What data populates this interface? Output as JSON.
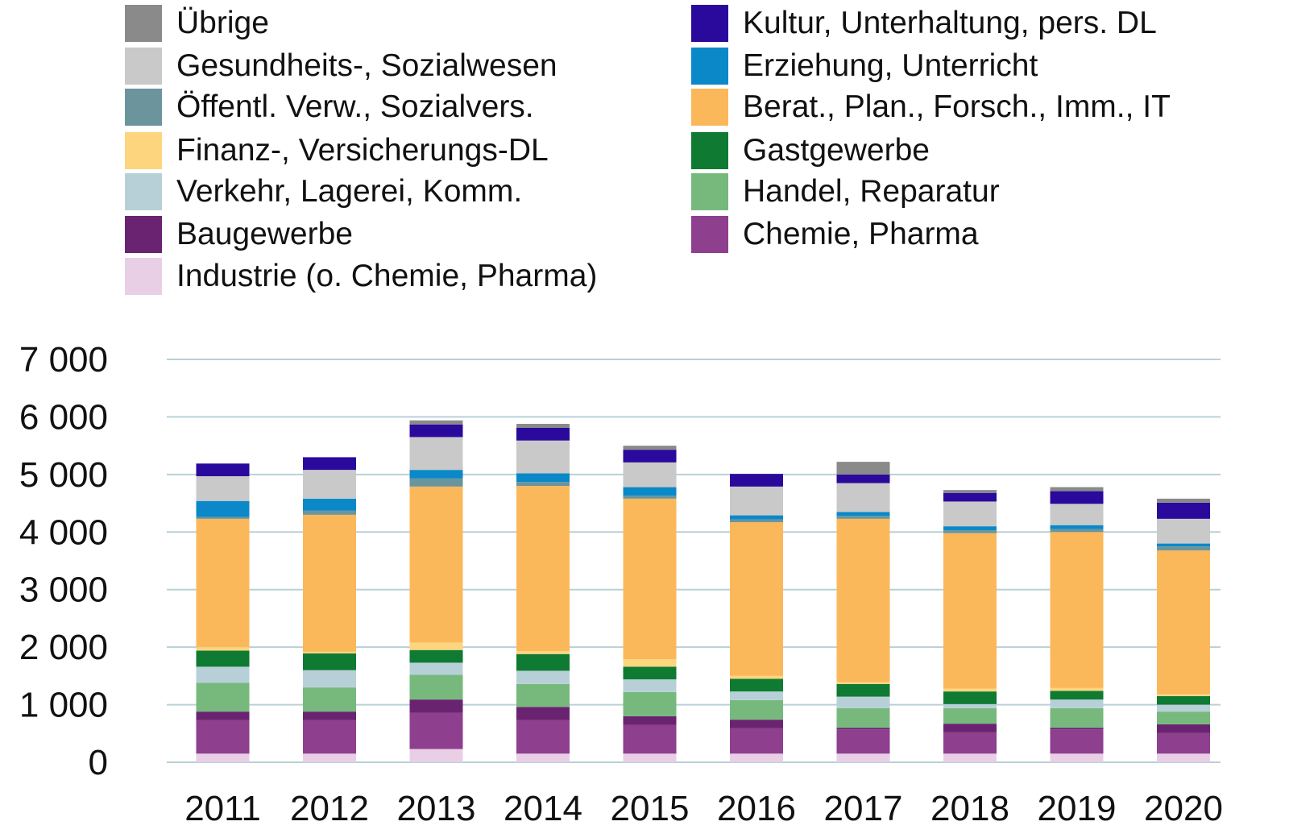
{
  "chart_data": {
    "type": "bar",
    "stacked": true,
    "categories": [
      "2011",
      "2012",
      "2013",
      "2014",
      "2015",
      "2016",
      "2017",
      "2018",
      "2019",
      "2020"
    ],
    "ylim": [
      0,
      7000
    ],
    "yticks": [
      {
        "value": 0,
        "label": "0"
      },
      {
        "value": 1000,
        "label": "1 000"
      },
      {
        "value": 2000,
        "label": "2 000"
      },
      {
        "value": 3000,
        "label": "3 000"
      },
      {
        "value": 4000,
        "label": "4 000"
      },
      {
        "value": 5000,
        "label": "5 000"
      },
      {
        "value": 6000,
        "label": "6 000"
      },
      {
        "value": 7000,
        "label": "7 000"
      }
    ],
    "grid": true,
    "legend_position": "top",
    "series": [
      {
        "name": "Industrie (o. Chemie, Pharma)",
        "color": "#e8cfe6",
        "values": [
          150,
          150,
          230,
          150,
          150,
          150,
          150,
          150,
          150,
          150
        ]
      },
      {
        "name": "Chemie, Pharma",
        "color": "#8e3f8e",
        "values": [
          580,
          580,
          630,
          580,
          500,
          440,
          420,
          370,
          420,
          360
        ]
      },
      {
        "name": "Baugewerbe",
        "color": "#6a2371",
        "values": [
          150,
          150,
          230,
          230,
          150,
          150,
          30,
          150,
          30,
          150
        ]
      },
      {
        "name": "Handel, Reparatur",
        "color": "#77b97d",
        "values": [
          500,
          420,
          430,
          400,
          420,
          340,
          340,
          270,
          340,
          220
        ]
      },
      {
        "name": "Verkehr, Lagerei, Komm.",
        "color": "#b7d0d8",
        "values": [
          280,
          300,
          210,
          230,
          220,
          150,
          200,
          70,
          150,
          120
        ]
      },
      {
        "name": "Gastgewerbe",
        "color": "#0e7a32",
        "values": [
          280,
          290,
          220,
          290,
          220,
          220,
          220,
          220,
          150,
          150
        ]
      },
      {
        "name": "Finanz-, Versicherungs-DL",
        "color": "#fdd57e",
        "values": [
          60,
          30,
          130,
          50,
          130,
          50,
          30,
          50,
          50,
          30
        ]
      },
      {
        "name": "Berat., Plan., Forsch., Imm., IT",
        "color": "#fbb85a",
        "values": [
          2230,
          2380,
          2710,
          2870,
          2790,
          2670,
          2840,
          2700,
          2710,
          2500
        ]
      },
      {
        "name": "Öffentl. Verw., Sozialvers.",
        "color": "#6b949c",
        "values": [
          30,
          70,
          140,
          70,
          50,
          50,
          50,
          50,
          50,
          70
        ]
      },
      {
        "name": "Erziehung, Unterricht",
        "color": "#0b88c8",
        "values": [
          280,
          210,
          150,
          150,
          150,
          70,
          70,
          70,
          70,
          50
        ]
      },
      {
        "name": "Gesundheits-, Sozialwesen",
        "color": "#c9c9c9",
        "values": [
          430,
          500,
          570,
          570,
          430,
          500,
          500,
          430,
          370,
          430
        ]
      },
      {
        "name": "Kultur, Unterhaltung, pers. DL",
        "color": "#2a0a9c",
        "values": [
          220,
          220,
          220,
          220,
          220,
          220,
          150,
          150,
          220,
          280
        ]
      },
      {
        "name": "Übrige",
        "color": "#8a8a8a",
        "values": [
          0,
          0,
          70,
          70,
          70,
          0,
          220,
          50,
          70,
          70
        ]
      }
    ],
    "legend_layout": [
      {
        "series": 12,
        "col": 0,
        "row": 0
      },
      {
        "series": 10,
        "col": 0,
        "row": 1
      },
      {
        "series": 8,
        "col": 0,
        "row": 2
      },
      {
        "series": 6,
        "col": 0,
        "row": 3
      },
      {
        "series": 4,
        "col": 0,
        "row": 4
      },
      {
        "series": 2,
        "col": 0,
        "row": 5
      },
      {
        "series": 0,
        "col": 0,
        "row": 6
      },
      {
        "series": 11,
        "col": 1,
        "row": 0
      },
      {
        "series": 9,
        "col": 1,
        "row": 1
      },
      {
        "series": 7,
        "col": 1,
        "row": 2
      },
      {
        "series": 5,
        "col": 1,
        "row": 3
      },
      {
        "series": 3,
        "col": 1,
        "row": 4
      },
      {
        "series": 1,
        "col": 1,
        "row": 5
      }
    ],
    "gridline_color": "#b9d0d6"
  }
}
